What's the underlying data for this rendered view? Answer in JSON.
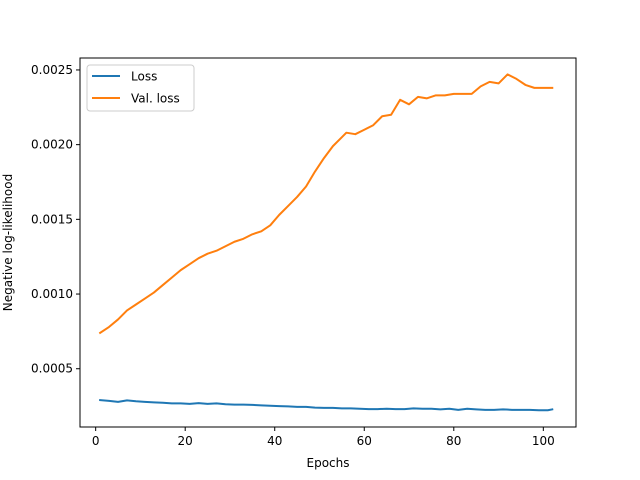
{
  "chart_data": {
    "type": "line",
    "xlabel": "Epochs",
    "ylabel": "Negative log-likelihood",
    "xlim": [
      -3.5,
      107.3
    ],
    "ylim": [
      0.00011,
      0.00258
    ],
    "xticks": [
      0,
      20,
      40,
      60,
      80,
      100
    ],
    "xtick_labels": [
      "0",
      "20",
      "40",
      "60",
      "80",
      "100"
    ],
    "yticks": [
      0.0005,
      0.001,
      0.0015,
      0.002,
      0.0025
    ],
    "ytick_labels": [
      "0.0005",
      "0.0010",
      "0.0015",
      "0.0020",
      "0.0025"
    ],
    "legend_position": "top-left",
    "grid": false,
    "series": [
      {
        "name": "Loss",
        "color": "#1f77b4",
        "x": [
          1,
          3,
          5,
          7,
          9,
          11,
          13,
          15,
          17,
          19,
          21,
          23,
          25,
          27,
          29,
          31,
          33,
          35,
          37,
          39,
          41,
          43,
          45,
          47,
          49,
          51,
          53,
          55,
          57,
          59,
          61,
          63,
          65,
          67,
          69,
          71,
          73,
          75,
          77,
          79,
          81,
          83,
          85,
          87,
          89,
          91,
          93,
          95,
          97,
          99,
          101,
          102
        ],
        "values": [
          0.00029,
          0.000285,
          0.000278,
          0.000288,
          0.000282,
          0.000278,
          0.000275,
          0.000272,
          0.000268,
          0.000268,
          0.000265,
          0.00027,
          0.000265,
          0.000268,
          0.000262,
          0.00026,
          0.00026,
          0.000258,
          0.000255,
          0.000252,
          0.00025,
          0.000248,
          0.000245,
          0.000245,
          0.00024,
          0.000238,
          0.000238,
          0.000235,
          0.000235,
          0.000232,
          0.00023,
          0.00023,
          0.000232,
          0.00023,
          0.00023,
          0.000235,
          0.000232,
          0.000232,
          0.000228,
          0.000232,
          0.000225,
          0.000232,
          0.000228,
          0.000225,
          0.000225,
          0.000228,
          0.000225,
          0.000225,
          0.000225,
          0.000222,
          0.000222,
          0.000228
        ]
      },
      {
        "name": "Val. loss",
        "color": "#ff7f0e",
        "x": [
          1,
          3,
          5,
          7,
          9,
          11,
          13,
          15,
          17,
          19,
          21,
          23,
          25,
          27,
          29,
          31,
          33,
          35,
          37,
          39,
          41,
          43,
          45,
          47,
          49,
          51,
          53,
          55,
          56,
          58,
          60,
          62,
          64,
          66,
          68,
          70,
          72,
          74,
          76,
          78,
          80,
          82,
          84,
          86,
          88,
          90,
          92,
          94,
          96,
          98,
          100,
          102
        ],
        "values": [
          0.00074,
          0.00078,
          0.00083,
          0.00089,
          0.00093,
          0.00097,
          0.00101,
          0.00106,
          0.00111,
          0.00116,
          0.0012,
          0.00124,
          0.00127,
          0.00129,
          0.00132,
          0.00135,
          0.00137,
          0.0014,
          0.00142,
          0.00146,
          0.00153,
          0.00159,
          0.00165,
          0.00172,
          0.00182,
          0.00191,
          0.00199,
          0.00205,
          0.00208,
          0.00207,
          0.0021,
          0.00213,
          0.00219,
          0.0022,
          0.0023,
          0.00227,
          0.00232,
          0.00231,
          0.00233,
          0.00233,
          0.00234,
          0.00234,
          0.00234,
          0.00239,
          0.00242,
          0.00241,
          0.00247,
          0.00244,
          0.0024,
          0.00238,
          0.00238,
          0.00238
        ]
      }
    ]
  }
}
